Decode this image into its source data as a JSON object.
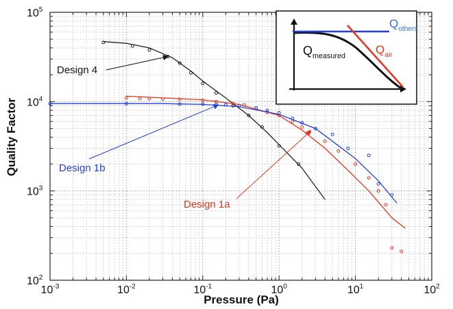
{
  "chart_data": {
    "type": "scatter",
    "x_scale": "log",
    "y_scale": "log",
    "xlim": [
      0.001,
      100
    ],
    "ylim": [
      100,
      100000
    ],
    "grid": true,
    "xlabel": "Pressure (Pa)",
    "ylabel": "Quality Factor",
    "x_ticks": [
      {
        "base": "10",
        "exp": "-3",
        "value": 0.001
      },
      {
        "base": "10",
        "exp": "-2",
        "value": 0.01
      },
      {
        "base": "10",
        "exp": "-1",
        "value": 0.1
      },
      {
        "base": "10",
        "exp": "0",
        "value": 1
      },
      {
        "base": "10",
        "exp": "1",
        "value": 10
      },
      {
        "base": "10",
        "exp": "2",
        "value": 100
      }
    ],
    "y_ticks": [
      {
        "base": "10",
        "exp": "2",
        "value": 100
      },
      {
        "base": "10",
        "exp": "3",
        "value": 1000
      },
      {
        "base": "10",
        "exp": "4",
        "value": 10000
      },
      {
        "base": "10",
        "exp": "5",
        "value": 100000
      }
    ],
    "series": [
      {
        "name": "Design 4",
        "color": "#222222",
        "label": "Design 4",
        "label_color": "#111111",
        "points": [
          [
            0.005,
            46000
          ],
          [
            0.012,
            42000
          ],
          [
            0.02,
            38000
          ],
          [
            0.035,
            32000
          ],
          [
            0.05,
            27000
          ],
          [
            0.07,
            21000
          ],
          [
            0.1,
            16000
          ],
          [
            0.15,
            12500
          ],
          [
            0.25,
            9000
          ],
          [
            0.4,
            7000
          ],
          [
            0.6,
            5200
          ],
          [
            1.0,
            3200
          ],
          [
            1.8,
            2000
          ]
        ],
        "fit": [
          [
            0.005,
            47000
          ],
          [
            0.01,
            45000
          ],
          [
            0.02,
            40000
          ],
          [
            0.04,
            31000
          ],
          [
            0.07,
            22000
          ],
          [
            0.1,
            17000
          ],
          [
            0.2,
            11000
          ],
          [
            0.4,
            7000
          ],
          [
            0.7,
            4500
          ],
          [
            1.0,
            3300
          ],
          [
            2.0,
            1800
          ],
          [
            4.0,
            800
          ]
        ]
      },
      {
        "name": "Design 1a",
        "color": "#e8331a",
        "label": "Design 1a",
        "label_color": "#e8331a",
        "points": [
          [
            0.01,
            11000
          ],
          [
            0.015,
            10800
          ],
          [
            0.02,
            10800
          ],
          [
            0.03,
            10700
          ],
          [
            0.05,
            10600
          ],
          [
            0.1,
            10300
          ],
          [
            0.15,
            10000
          ],
          [
            0.25,
            9500
          ],
          [
            0.35,
            9200
          ],
          [
            0.5,
            8500
          ],
          [
            0.7,
            7600
          ],
          [
            1.0,
            7000
          ],
          [
            1.5,
            6000
          ],
          [
            2.0,
            5200
          ],
          [
            2.5,
            4600
          ],
          [
            4.0,
            3600
          ],
          [
            6.0,
            2800
          ],
          [
            10,
            2000
          ],
          [
            15,
            1400
          ],
          [
            20,
            1000
          ],
          [
            25,
            700
          ],
          [
            30,
            230
          ],
          [
            40,
            210
          ]
        ],
        "fit": [
          [
            0.01,
            11500
          ],
          [
            0.03,
            11000
          ],
          [
            0.1,
            10500
          ],
          [
            0.3,
            9300
          ],
          [
            1.0,
            7000
          ],
          [
            2.0,
            4800
          ],
          [
            4.0,
            3000
          ],
          [
            8.0,
            1700
          ],
          [
            15,
            1000
          ],
          [
            30,
            500
          ],
          [
            45,
            380
          ]
        ]
      },
      {
        "name": "Design 1b",
        "color": "#1f3fe0",
        "label": "Design 1b",
        "label_color": "#1f3fe0",
        "points": [
          [
            0.001,
            9500
          ],
          [
            0.01,
            9500
          ],
          [
            0.05,
            9400
          ],
          [
            0.1,
            9400
          ],
          [
            0.15,
            9300
          ],
          [
            0.2,
            9200
          ],
          [
            0.3,
            9000
          ],
          [
            0.5,
            8500
          ],
          [
            0.7,
            8000
          ],
          [
            1.0,
            7500
          ],
          [
            1.5,
            6500
          ],
          [
            2.0,
            5800
          ],
          [
            3.0,
            5000
          ],
          [
            5.0,
            4300
          ],
          [
            8.0,
            3000
          ],
          [
            15,
            2500
          ],
          [
            20,
            1200
          ],
          [
            30,
            900
          ]
        ],
        "fit": [
          [
            0.001,
            9500
          ],
          [
            0.03,
            9500
          ],
          [
            0.1,
            9300
          ],
          [
            0.3,
            8800
          ],
          [
            1.0,
            7200
          ],
          [
            3.0,
            5000
          ],
          [
            6.0,
            3200
          ],
          [
            10,
            2300
          ],
          [
            20,
            1300
          ],
          [
            35,
            730
          ]
        ]
      }
    ],
    "label_arrows": [
      {
        "series": "Design 4",
        "text": "Design 4"
      },
      {
        "series": "Design 1b",
        "text": "Design 1b"
      },
      {
        "series": "Design 1a",
        "text": "Design 1a"
      }
    ],
    "inset": {
      "q_others": {
        "text": "Q",
        "sub": "others",
        "color": "#2a6fe0"
      },
      "q_air": {
        "text": "Q",
        "sub": "air",
        "color": "#e8331a"
      },
      "q_measured": {
        "text": "Q",
        "sub": "measured",
        "color": "#111111"
      }
    }
  }
}
